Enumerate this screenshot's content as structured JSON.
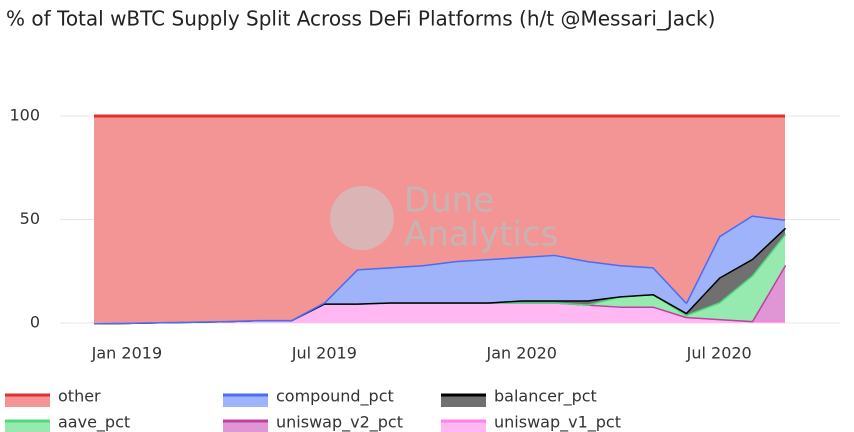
{
  "chart_data": {
    "type": "stacked_area",
    "title": "% of Total wBTC Supply Split Across DeFi Platforms (h/t @Messari_Jack)",
    "watermark": [
      "Dune",
      "Analytics"
    ],
    "x": [
      "2018-12",
      "2019-01",
      "2019-02",
      "2019-03",
      "2019-04",
      "2019-05",
      "2019-06",
      "2019-07",
      "2019-08",
      "2019-09",
      "2019-10",
      "2019-11",
      "2019-12",
      "2020-01",
      "2020-02",
      "2020-03",
      "2020-04",
      "2020-05",
      "2020-06",
      "2020-07",
      "2020-08",
      "2020-09"
    ],
    "series": [
      {
        "name": "uniswap_v1_pct",
        "color": "#ff80e8",
        "fill": "#ffb8f2",
        "values": [
          0,
          0.2,
          0.5,
          0.7,
          1,
          1.5,
          1.5,
          9.5,
          9.5,
          10,
          10,
          10,
          10,
          10,
          10,
          9,
          8,
          8,
          3,
          2,
          1,
          1
        ]
      },
      {
        "name": "uniswap_v2_pct",
        "color": "#c040a0",
        "fill": "#e096d4",
        "values": [
          0,
          0,
          0,
          0,
          0,
          0,
          0,
          0,
          0,
          0,
          0,
          0,
          0,
          0,
          0,
          0,
          0,
          0,
          0,
          0,
          0,
          27
        ]
      },
      {
        "name": "aave_pct",
        "color": "#50d880",
        "fill": "#96eab0",
        "values": [
          0,
          0,
          0,
          0,
          0,
          0,
          0,
          0,
          0,
          0,
          0,
          0,
          0,
          0,
          0,
          0,
          5,
          6,
          1,
          8,
          22,
          15
        ]
      },
      {
        "name": "balancer_pct",
        "color": "#000000",
        "fill": "#707070",
        "values": [
          0,
          0,
          0,
          0,
          0,
          0,
          0,
          0,
          0,
          0,
          0,
          0,
          0,
          1,
          1,
          2,
          0,
          0,
          1,
          12,
          8,
          3
        ]
      },
      {
        "name": "compound_pct",
        "color": "#4a6cf7",
        "fill": "#9fb3fa",
        "values": [
          0,
          0,
          0,
          0,
          0,
          0,
          0,
          0.5,
          16.5,
          17,
          18,
          20,
          21,
          21,
          22,
          19,
          15,
          13,
          5,
          20,
          21,
          4
        ]
      },
      {
        "name": "other",
        "color": "#e03030",
        "fill": "#f39595",
        "values": [
          100,
          99.8,
          99.5,
          99.3,
          99,
          98.5,
          98.5,
          90,
          74,
          73,
          72,
          70,
          69,
          68,
          67,
          70,
          72,
          73,
          90,
          58,
          48,
          50
        ]
      }
    ],
    "legend_order": [
      5,
      4,
      3,
      2,
      1,
      0
    ],
    "xlim": [
      "2018-12",
      "2020-09"
    ],
    "xticks": [
      {
        "value": "2019-01",
        "label": "Jan 2019"
      },
      {
        "value": "2019-07",
        "label": "Jul 2019"
      },
      {
        "value": "2020-01",
        "label": "Jan 2020"
      },
      {
        "value": "2020-07",
        "label": "Jul 2020"
      }
    ],
    "ylim": [
      0,
      100
    ],
    "yticks": [
      0,
      50,
      100
    ],
    "grid": true
  }
}
